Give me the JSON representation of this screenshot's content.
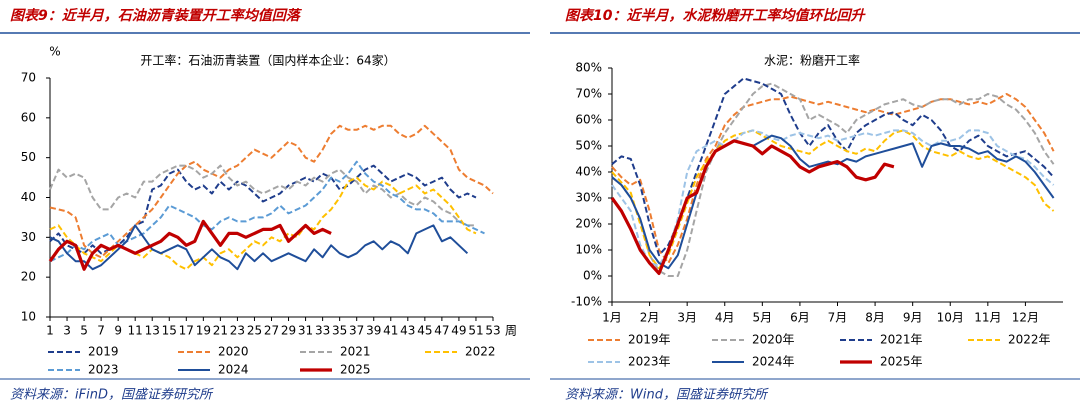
{
  "chart_data": [
    {
      "type": "line",
      "title": "图表9：近半月，石油沥青装置开工率均值回落",
      "subtitle": "开工率：石油沥青装置（国内样本企业：64家）",
      "ylabel": "%",
      "xlabel": "周",
      "source": "资料来源：iFinD，国盛证券研究所",
      "x": [
        1,
        2,
        3,
        4,
        5,
        6,
        7,
        8,
        9,
        10,
        11,
        12,
        13,
        14,
        15,
        16,
        17,
        18,
        19,
        20,
        21,
        22,
        23,
        24,
        25,
        26,
        27,
        28,
        29,
        30,
        31,
        32,
        33,
        34,
        35,
        36,
        37,
        38,
        39,
        40,
        41,
        42,
        43,
        44,
        45,
        46,
        47,
        48,
        49,
        50,
        51,
        52,
        53
      ],
      "xlim": [
        1,
        53
      ],
      "xticks": [
        1,
        3,
        5,
        7,
        9,
        11,
        13,
        15,
        17,
        19,
        21,
        23,
        25,
        27,
        29,
        31,
        33,
        35,
        37,
        39,
        41,
        43,
        45,
        47,
        49,
        51,
        53
      ],
      "ylim": [
        10,
        70
      ],
      "yticks": [
        10,
        20,
        30,
        40,
        50,
        60,
        70
      ],
      "series": [
        {
          "name": "2019",
          "color": "#1f3d8c",
          "style": "dashed",
          "values": [
            29,
            31,
            28,
            27,
            26,
            28,
            26,
            27,
            28,
            30,
            33,
            34,
            42,
            43,
            46,
            47,
            44,
            42,
            43,
            41,
            44,
            42,
            44,
            43,
            41,
            39,
            40,
            41,
            43,
            44,
            45,
            44,
            46,
            45,
            42,
            43,
            45,
            47,
            48,
            46,
            44,
            45,
            46,
            45,
            43,
            44,
            45,
            42,
            40,
            41,
            40,
            null,
            null
          ]
        },
        {
          "name": "2020",
          "color": "#ed7d31",
          "style": "dashed",
          "values": [
            37.5,
            37,
            36.5,
            35,
            28,
            26,
            25,
            27,
            29,
            31,
            33,
            35,
            37,
            40,
            43,
            46,
            48,
            49,
            47,
            46,
            45,
            47,
            48,
            50,
            52,
            51,
            50,
            52,
            54,
            53,
            50,
            49,
            52,
            56,
            58,
            57,
            57,
            58,
            57,
            58,
            58,
            56,
            55,
            56,
            58,
            56,
            54,
            52,
            47,
            45,
            44,
            43,
            41
          ]
        },
        {
          "name": "2021",
          "color": "#a5a5a5",
          "style": "dashed",
          "values": [
            42,
            47,
            45,
            46,
            45,
            40,
            37,
            37,
            40,
            41,
            40,
            44,
            44,
            46,
            47,
            48,
            48,
            47,
            45,
            46,
            48,
            45,
            43,
            44,
            42,
            41,
            42,
            43,
            42,
            44,
            43,
            45,
            44,
            46,
            47,
            45,
            44,
            41,
            43,
            42,
            40,
            41,
            39,
            38,
            40,
            39,
            37,
            36,
            34,
            33,
            33,
            null,
            null
          ]
        },
        {
          "name": "2022",
          "color": "#ffc000",
          "style": "dashed",
          "values": [
            32,
            33,
            30,
            28,
            26,
            25,
            24,
            26,
            28,
            27,
            26,
            25,
            27,
            26,
            25,
            23,
            22,
            24,
            25,
            23,
            26,
            27,
            25,
            27,
            29,
            28,
            30,
            29,
            31,
            30,
            33,
            32,
            35,
            37,
            40,
            44,
            45,
            43,
            42,
            44,
            43,
            41,
            42,
            43,
            41,
            42,
            40,
            38,
            35,
            32,
            31,
            null,
            null
          ]
        },
        {
          "name": "2023",
          "color": "#5b9bd5",
          "style": "dashed",
          "values": [
            24,
            25,
            26,
            28,
            27,
            29,
            30,
            31,
            28,
            29,
            30,
            31,
            33,
            35,
            38,
            37,
            36,
            35,
            33,
            32,
            34,
            35,
            34,
            34,
            35,
            35,
            36,
            38,
            36,
            37,
            38,
            40,
            42,
            45,
            44,
            46,
            49,
            46,
            44,
            43,
            41,
            40,
            38,
            37,
            37,
            36,
            34,
            34,
            34,
            33,
            32,
            31,
            null
          ]
        },
        {
          "name": "2024",
          "color": "#1f4e9a",
          "style": "solid",
          "values": [
            30,
            29,
            26,
            24,
            24,
            22,
            23,
            25,
            27,
            29,
            33,
            30,
            27,
            26,
            27,
            28,
            27,
            23,
            25,
            27,
            25,
            24,
            22,
            26,
            24,
            26,
            24,
            25,
            26,
            25,
            24,
            27,
            25,
            28,
            26,
            25,
            26,
            28,
            29,
            27,
            29,
            28,
            26,
            31,
            32,
            33,
            29,
            30,
            28,
            26,
            null,
            null,
            null
          ]
        },
        {
          "name": "2025",
          "color": "#c00000",
          "style": "thick",
          "values": [
            24,
            27,
            29,
            28,
            22,
            26,
            28,
            27,
            28,
            27,
            26,
            27,
            28,
            29,
            31,
            30,
            28,
            29,
            34,
            31,
            28,
            31,
            31,
            30,
            31,
            32,
            32,
            33,
            29,
            31,
            33,
            31,
            32,
            31,
            null,
            null,
            null,
            null,
            null,
            null,
            null,
            null,
            null,
            null,
            null,
            null,
            null,
            null,
            null,
            null,
            null,
            null,
            null
          ]
        }
      ]
    },
    {
      "type": "line",
      "title": "图表10：近半月，水泥粉磨开工率均值环比回升",
      "subtitle": "水泥：粉磨开工率",
      "source": "资料来源：Wind，国盛证券研究所",
      "x": [
        1,
        1.25,
        1.5,
        1.75,
        2,
        2.25,
        2.5,
        2.75,
        3,
        3.25,
        3.5,
        3.75,
        4,
        4.25,
        4.5,
        4.75,
        5,
        5.25,
        5.5,
        5.75,
        6,
        6.25,
        6.5,
        6.75,
        7,
        7.25,
        7.5,
        7.75,
        8,
        8.25,
        8.5,
        8.75,
        9,
        9.25,
        9.5,
        9.75,
        10,
        10.25,
        10.5,
        10.75,
        11,
        11.25,
        11.5,
        11.75,
        12,
        12.25,
        12.5,
        12.75
      ],
      "xlim": [
        1,
        13
      ],
      "xticks": [
        {
          "value": 1,
          "label": "1月"
        },
        {
          "value": 2,
          "label": "2月"
        },
        {
          "value": 3,
          "label": "3月"
        },
        {
          "value": 4,
          "label": "4月"
        },
        {
          "value": 5,
          "label": "5月"
        },
        {
          "value": 6,
          "label": "6月"
        },
        {
          "value": 7,
          "label": "7月"
        },
        {
          "value": 8,
          "label": "8月"
        },
        {
          "value": 9,
          "label": "9月"
        },
        {
          "value": 10,
          "label": "10月"
        },
        {
          "value": 11,
          "label": "11月"
        },
        {
          "value": 12,
          "label": "12月"
        }
      ],
      "ylim": [
        -10,
        80
      ],
      "yticks": [
        {
          "value": -10,
          "label": "-10%"
        },
        {
          "value": 0,
          "label": "0%"
        },
        {
          "value": 10,
          "label": "10%"
        },
        {
          "value": 20,
          "label": "20%"
        },
        {
          "value": 30,
          "label": "30%"
        },
        {
          "value": 40,
          "label": "40%"
        },
        {
          "value": 50,
          "label": "50%"
        },
        {
          "value": 60,
          "label": "60%"
        },
        {
          "value": 70,
          "label": "70%"
        },
        {
          "value": 80,
          "label": "80%"
        }
      ],
      "series": [
        {
          "name": "2019年",
          "color": "#ed7d31",
          "style": "dashed",
          "values": [
            42,
            38,
            35,
            37,
            25,
            10,
            5,
            12,
            22,
            35,
            45,
            50,
            58,
            62,
            65,
            66,
            67,
            68,
            68,
            69,
            68,
            67,
            66,
            67,
            66,
            65,
            64,
            63,
            64,
            63,
            62,
            63,
            64,
            65,
            67,
            68,
            68,
            67,
            66,
            67,
            66,
            68,
            70,
            68,
            65,
            60,
            55,
            48
          ]
        },
        {
          "name": "2020年",
          "color": "#a5a5a5",
          "style": "dashed",
          "values": [
            38,
            35,
            30,
            22,
            8,
            2,
            0,
            0,
            10,
            25,
            40,
            48,
            55,
            60,
            65,
            70,
            73,
            74,
            72,
            70,
            68,
            60,
            62,
            60,
            58,
            55,
            60,
            62,
            64,
            66,
            67,
            68,
            66,
            65,
            67,
            68,
            68,
            66,
            68,
            68,
            70,
            69,
            66,
            64,
            60,
            55,
            48,
            43
          ]
        },
        {
          "name": "2021年",
          "color": "#1f3d8c",
          "style": "dashed",
          "values": [
            43,
            46,
            45,
            35,
            20,
            8,
            12,
            20,
            30,
            40,
            50,
            60,
            70,
            73,
            76,
            75,
            74,
            72,
            70,
            62,
            55,
            50,
            55,
            58,
            52,
            48,
            55,
            58,
            60,
            62,
            63,
            60,
            58,
            62,
            60,
            56,
            50,
            48,
            52,
            54,
            50,
            48,
            46,
            47,
            48,
            45,
            42,
            38
          ]
        },
        {
          "name": "2022年",
          "color": "#ffc000",
          "style": "dashed",
          "values": [
            40,
            36,
            32,
            20,
            8,
            3,
            8,
            18,
            28,
            38,
            44,
            48,
            52,
            54,
            55,
            56,
            54,
            52,
            50,
            49,
            48,
            47,
            50,
            52,
            50,
            48,
            47,
            49,
            48,
            52,
            55,
            56,
            54,
            50,
            48,
            47,
            46,
            48,
            46,
            45,
            46,
            44,
            42,
            40,
            38,
            35,
            28,
            25
          ]
        },
        {
          "name": "2023年",
          "color": "#9dc3e6",
          "style": "dashed",
          "values": [
            35,
            30,
            25,
            12,
            5,
            4,
            10,
            22,
            40,
            48,
            50,
            52,
            50,
            52,
            55,
            56,
            55,
            53,
            52,
            54,
            55,
            54,
            53,
            54,
            52,
            53,
            54,
            55,
            54,
            55,
            56,
            56,
            55,
            52,
            50,
            52,
            52,
            53,
            56,
            56,
            55,
            50,
            48,
            46,
            45,
            42,
            38,
            35
          ]
        },
        {
          "name": "2024年",
          "color": "#1f4e9a",
          "style": "solid",
          "values": [
            38,
            35,
            30,
            22,
            10,
            5,
            3,
            8,
            20,
            32,
            42,
            48,
            50,
            52,
            51,
            50,
            52,
            54,
            53,
            50,
            45,
            42,
            43,
            44,
            43,
            45,
            44,
            46,
            47,
            48,
            49,
            50,
            51,
            42,
            50,
            51,
            50,
            50,
            49,
            47,
            48,
            45,
            44,
            46,
            44,
            40,
            35,
            30
          ]
        },
        {
          "name": "2025年",
          "color": "#c00000",
          "style": "thick",
          "values": [
            30,
            25,
            18,
            10,
            5,
            1,
            10,
            20,
            30,
            32,
            42,
            48,
            50,
            52,
            51,
            50,
            47,
            50,
            48,
            46,
            42,
            40,
            42,
            43,
            44,
            42,
            38,
            37,
            38,
            43,
            42,
            null,
            null,
            null,
            null,
            null,
            null,
            null,
            null,
            null,
            null,
            null,
            null,
            null,
            null,
            null,
            null,
            null
          ]
        }
      ]
    }
  ]
}
